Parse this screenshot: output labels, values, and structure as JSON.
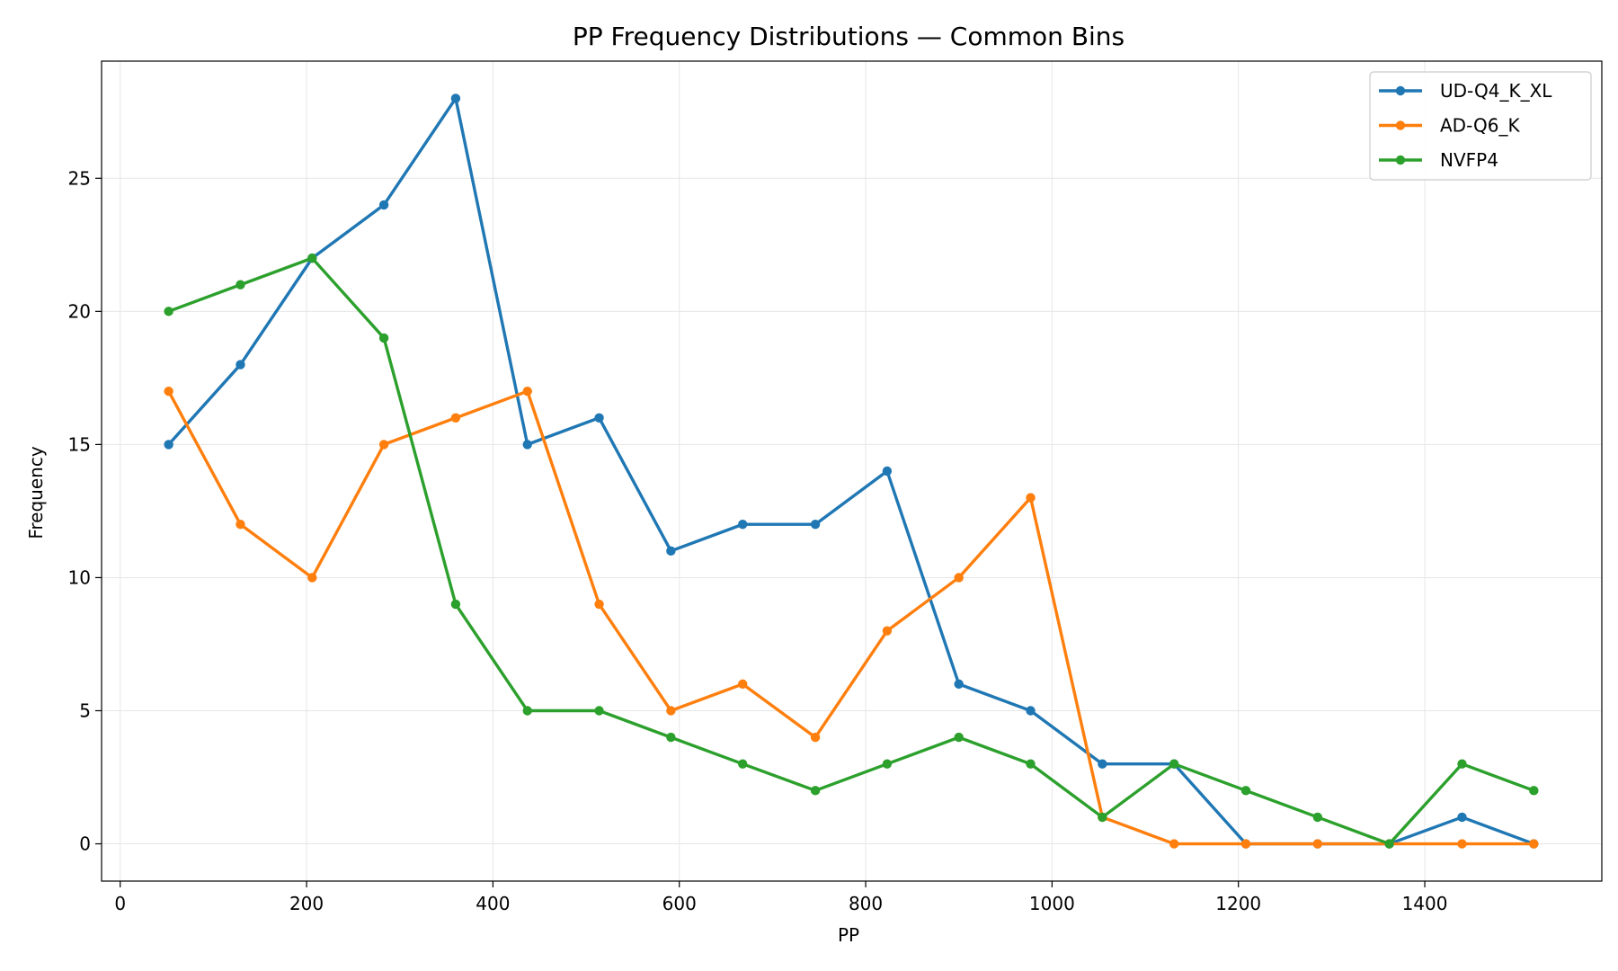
{
  "chart_data": {
    "type": "line",
    "title": "PP Frequency Distributions — Common Bins",
    "xlabel": "PP",
    "ylabel": "Frequency",
    "xlim": [
      -20,
      1590
    ],
    "ylim": [
      -1.4,
      29.4
    ],
    "xticks": [
      0,
      200,
      400,
      600,
      800,
      1000,
      1200,
      1400
    ],
    "yticks": [
      0,
      5,
      10,
      15,
      20,
      25
    ],
    "grid": true,
    "legend_position": "top-right",
    "x": [
      52,
      129,
      206,
      283,
      360,
      437,
      514,
      591,
      668,
      746,
      823,
      900,
      977,
      1054,
      1131,
      1208,
      1285,
      1362,
      1440,
      1517
    ],
    "series": [
      {
        "name": "UD-Q4_K_XL",
        "color": "#1f77b4",
        "values": [
          15,
          18,
          22,
          24,
          28,
          15,
          16,
          11,
          12,
          12,
          14,
          6,
          5,
          3,
          3,
          0,
          0,
          0,
          1,
          0
        ]
      },
      {
        "name": "AD-Q6_K",
        "color": "#ff7f0e",
        "values": [
          17,
          12,
          10,
          15,
          16,
          17,
          9,
          5,
          6,
          4,
          8,
          10,
          13,
          1,
          0,
          0,
          0,
          0,
          0,
          0
        ]
      },
      {
        "name": "NVFP4",
        "color": "#2ca02c",
        "values": [
          20,
          21,
          22,
          19,
          9,
          5,
          5,
          4,
          3,
          2,
          3,
          4,
          3,
          1,
          3,
          2,
          1,
          0,
          3,
          2
        ]
      }
    ]
  }
}
